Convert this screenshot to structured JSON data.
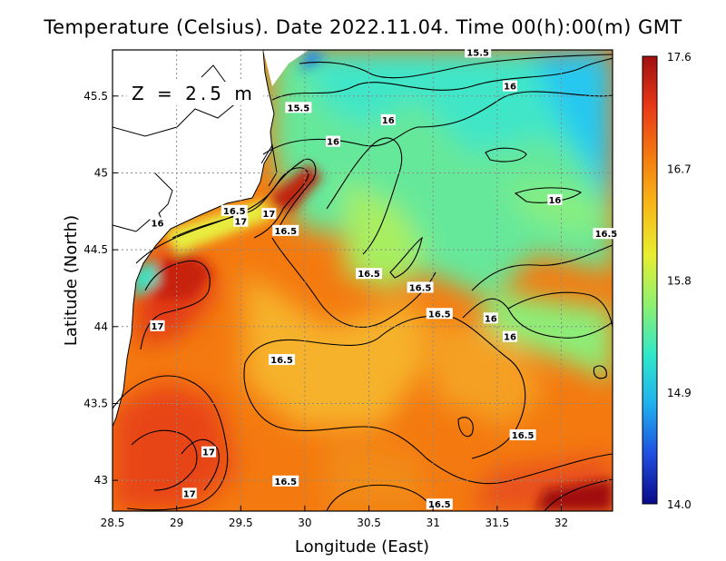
{
  "title": "Temperature (Celsius). Date 2022.11.04. Time 00(h):00(m)  GMT",
  "depth_label": "Z = 2.5 m",
  "x_axis": {
    "label": "Longitude (East)",
    "range": [
      28.5,
      32.4
    ],
    "ticks": [
      "28.5",
      "29",
      "29.5",
      "30",
      "30.5",
      "31",
      "31.5",
      "32"
    ]
  },
  "y_axis": {
    "label": "Latitude (North)",
    "range": [
      42.8,
      45.8
    ],
    "ticks": [
      "43",
      "43.5",
      "44",
      "44.5",
      "45",
      "45.5"
    ]
  },
  "colorbar": {
    "min": 14.0,
    "max": 17.6,
    "labels": [
      "17.6",
      "16.7",
      "15.8",
      "14.9",
      "14.0"
    ],
    "colors": [
      "#0a0a8a",
      "#1f4fe0",
      "#1fb0f0",
      "#30e8c8",
      "#8ef070",
      "#e8ee30",
      "#f8b818",
      "#f47a10",
      "#e83818",
      "#a01010"
    ]
  },
  "contour_labels": [
    {
      "text": "15.5",
      "lon": 31.35,
      "lat": 45.78
    },
    {
      "text": "15.5",
      "lon": 29.95,
      "lat": 45.42
    },
    {
      "text": "16",
      "lon": 31.6,
      "lat": 45.56
    },
    {
      "text": "16",
      "lon": 30.65,
      "lat": 45.34
    },
    {
      "text": "16",
      "lon": 30.22,
      "lat": 45.2
    },
    {
      "text": "16",
      "lon": 31.95,
      "lat": 44.82
    },
    {
      "text": "16",
      "lon": 28.85,
      "lat": 44.67
    },
    {
      "text": "16.5",
      "lon": 29.45,
      "lat": 44.75
    },
    {
      "text": "17",
      "lon": 29.5,
      "lat": 44.68
    },
    {
      "text": "17",
      "lon": 29.72,
      "lat": 44.73
    },
    {
      "text": "16.5",
      "lon": 29.85,
      "lat": 44.62
    },
    {
      "text": "16.5",
      "lon": 32.35,
      "lat": 44.6
    },
    {
      "text": "16.5",
      "lon": 30.5,
      "lat": 44.34
    },
    {
      "text": "16.5",
      "lon": 30.9,
      "lat": 44.25
    },
    {
      "text": "16.5",
      "lon": 31.05,
      "lat": 44.08
    },
    {
      "text": "16",
      "lon": 31.45,
      "lat": 44.05
    },
    {
      "text": "16",
      "lon": 31.6,
      "lat": 43.93
    },
    {
      "text": "17",
      "lon": 28.85,
      "lat": 44.0
    },
    {
      "text": "16.5",
      "lon": 29.82,
      "lat": 43.78
    },
    {
      "text": "16.5",
      "lon": 31.7,
      "lat": 43.29
    },
    {
      "text": "17",
      "lon": 29.25,
      "lat": 43.18
    },
    {
      "text": "16.5",
      "lon": 29.85,
      "lat": 42.99
    },
    {
      "text": "17",
      "lon": 29.1,
      "lat": 42.91
    },
    {
      "text": "16.5",
      "lon": 31.05,
      "lat": 42.84
    }
  ]
}
